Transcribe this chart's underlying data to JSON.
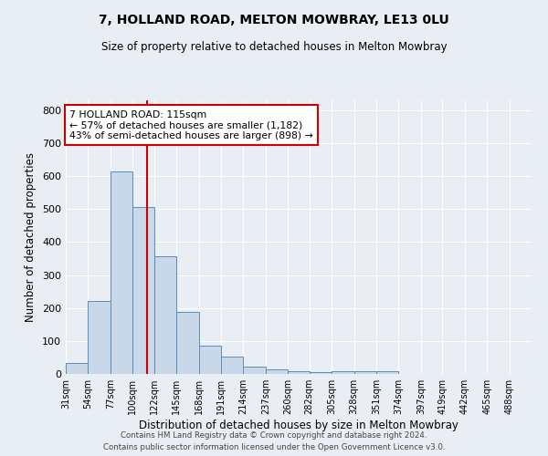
{
  "title1": "7, HOLLAND ROAD, MELTON MOWBRAY, LE13 0LU",
  "title2": "Size of property relative to detached houses in Melton Mowbray",
  "xlabel": "Distribution of detached houses by size in Melton Mowbray",
  "ylabel": "Number of detached properties",
  "bar_color": "#c8d8e8",
  "bar_edge_color": "#5b8db8",
  "bin_labels": [
    "31sqm",
    "54sqm",
    "77sqm",
    "100sqm",
    "122sqm",
    "145sqm",
    "168sqm",
    "191sqm",
    "214sqm",
    "237sqm",
    "260sqm",
    "282sqm",
    "305sqm",
    "328sqm",
    "351sqm",
    "374sqm",
    "397sqm",
    "419sqm",
    "442sqm",
    "465sqm",
    "488sqm"
  ],
  "bar_heights": [
    32,
    220,
    615,
    505,
    357,
    188,
    85,
    53,
    22,
    14,
    7,
    5,
    9,
    7,
    8,
    0,
    0,
    0,
    0,
    0,
    0
  ],
  "property_line_x": 115,
  "property_line_label": "7 HOLLAND ROAD: 115sqm",
  "annotation_line1": "← 57% of detached houses are smaller (1,182)",
  "annotation_line2": "43% of semi-detached houses are larger (898) →",
  "vline_color": "#cc0000",
  "annotation_box_color": "#ffffff",
  "annotation_box_edge_color": "#cc0000",
  "ylim": [
    0,
    830
  ],
  "yticks": [
    0,
    100,
    200,
    300,
    400,
    500,
    600,
    700,
    800
  ],
  "background_color": "#e8eef4",
  "footer1": "Contains HM Land Registry data © Crown copyright and database right 2024.",
  "footer2": "Contains public sector information licensed under the Open Government Licence v3.0.",
  "bin_edges": [
    31,
    54,
    77,
    100,
    122,
    145,
    168,
    191,
    214,
    237,
    260,
    282,
    305,
    328,
    351,
    374,
    397,
    419,
    442,
    465,
    488,
    511
  ]
}
